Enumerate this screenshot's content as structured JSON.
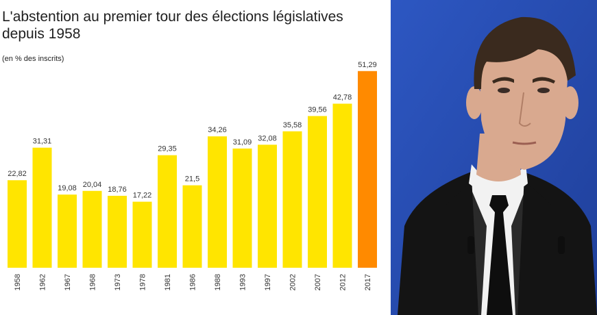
{
  "chart_data": {
    "type": "bar",
    "title": "L'abstention au premier tour des élections législatives depuis 1958",
    "subtitle": "(en % des inscrits)",
    "categories": [
      "1958",
      "1962",
      "1967",
      "1968",
      "1973",
      "1978",
      "1981",
      "1986",
      "1988",
      "1993",
      "1997",
      "2002",
      "2007",
      "2012",
      "2017"
    ],
    "values": [
      22.82,
      31.31,
      19.08,
      20.04,
      18.76,
      17.22,
      29.35,
      21.5,
      34.26,
      31.09,
      32.08,
      35.58,
      39.56,
      42.78,
      51.29
    ],
    "value_labels": [
      "22,82",
      "31,31",
      "19,08",
      "20,04",
      "18,76",
      "17,22",
      "29,35",
      "21,5",
      "34,26",
      "31,09",
      "32,08",
      "35,58",
      "39,56",
      "42,78",
      "51,29"
    ],
    "ylim": [
      0,
      60
    ],
    "grid": false,
    "legend": "none",
    "colors": {
      "default": "#ffe500",
      "highlight": "#ff8a00"
    },
    "highlight_index": 14
  },
  "photo": {
    "colors": {
      "background": "#2d57c2",
      "background_dark": "#1f3f9a",
      "suit": "#141414",
      "shirt": "#f2f2f2",
      "tie": "#0e0e0e",
      "skin": "#d9a98f",
      "hair": "#3a2a1e"
    }
  }
}
